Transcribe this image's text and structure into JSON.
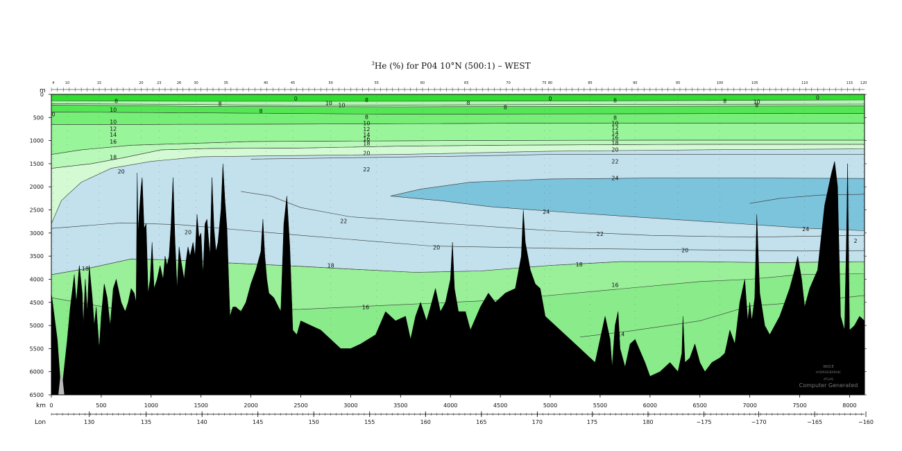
{
  "chart_data": {
    "type": "section_contour",
    "title_superscript": "3",
    "title_main": "He (%) for P04 10°N (500:1) – WEST",
    "x_axis_unit": "km",
    "y_axis_unit": "m",
    "lon_axis_unit": "Lon",
    "xlim": [
      0,
      8150
    ],
    "ylim": [
      6500,
      0
    ],
    "x_ticks": [
      0,
      500,
      1000,
      1500,
      2000,
      2500,
      3000,
      3500,
      4000,
      4500,
      5000,
      5500,
      6000,
      6500,
      7000,
      7500,
      8000
    ],
    "y_ticks": [
      0,
      500,
      1000,
      1500,
      2000,
      2500,
      3000,
      3500,
      4000,
      4500,
      5000,
      5500,
      6000,
      6500
    ],
    "lon_ticks": [
      {
        "km": 380,
        "label": "130"
      },
      {
        "km": 950,
        "label": "135"
      },
      {
        "km": 1510,
        "label": "140"
      },
      {
        "km": 2070,
        "label": "145"
      },
      {
        "km": 2630,
        "label": "150"
      },
      {
        "km": 3190,
        "label": "155"
      },
      {
        "km": 3750,
        "label": "160"
      },
      {
        "km": 4310,
        "label": "165"
      },
      {
        "km": 4870,
        "label": "170"
      },
      {
        "km": 5420,
        "label": "175"
      },
      {
        "km": 5980,
        "label": "180"
      },
      {
        "km": 6540,
        "label": "−175"
      },
      {
        "km": 7090,
        "label": "−170"
      },
      {
        "km": 7650,
        "label": "−165"
      },
      {
        "km": 8200,
        "label": "−160"
      }
    ],
    "stations": [
      {
        "km": 20,
        "label": "4"
      },
      {
        "km": 160,
        "label": "10"
      },
      {
        "km": 480,
        "label": "15"
      },
      {
        "km": 900,
        "label": "20"
      },
      {
        "km": 1080,
        "label": "23"
      },
      {
        "km": 1280,
        "label": "26"
      },
      {
        "km": 1450,
        "label": "30"
      },
      {
        "km": 1750,
        "label": "35"
      },
      {
        "km": 2150,
        "label": "40"
      },
      {
        "km": 2420,
        "label": "45"
      },
      {
        "km": 2800,
        "label": "50"
      },
      {
        "km": 3260,
        "label": "55"
      },
      {
        "km": 3720,
        "label": "60"
      },
      {
        "km": 4160,
        "label": "65"
      },
      {
        "km": 4580,
        "label": "70"
      },
      {
        "km": 4940,
        "label": "75"
      },
      {
        "km": 5000,
        "label": "80"
      },
      {
        "km": 5400,
        "label": "85"
      },
      {
        "km": 5850,
        "label": "90"
      },
      {
        "km": 6280,
        "label": "95"
      },
      {
        "km": 6700,
        "label": "100"
      },
      {
        "km": 7050,
        "label": "105"
      },
      {
        "km": 7550,
        "label": "110"
      },
      {
        "km": 8000,
        "label": "115"
      },
      {
        "km": 8140,
        "label": "120"
      }
    ],
    "contour_levels": [
      0,
      8,
      10,
      12,
      14,
      16,
      18,
      20,
      22,
      24
    ],
    "contour_labels": [
      {
        "text": "0",
        "km": 2450,
        "depth": 90
      },
      {
        "text": "0",
        "km": 5000,
        "depth": 90
      },
      {
        "text": "0",
        "km": 7680,
        "depth": 70
      },
      {
        "text": "0",
        "km": 20,
        "depth": 430
      },
      {
        "text": "8",
        "km": 650,
        "depth": 140
      },
      {
        "text": "8",
        "km": 1690,
        "depth": 200
      },
      {
        "text": "8",
        "km": 2100,
        "depth": 360
      },
      {
        "text": "8",
        "km": 3160,
        "depth": 120
      },
      {
        "text": "8",
        "km": 4180,
        "depth": 180
      },
      {
        "text": "8",
        "km": 4550,
        "depth": 280
      },
      {
        "text": "8",
        "km": 5650,
        "depth": 130
      },
      {
        "text": "8",
        "km": 6750,
        "depth": 140
      },
      {
        "text": "8",
        "km": 7070,
        "depth": 230
      },
      {
        "text": "8",
        "km": 3160,
        "depth": 490
      },
      {
        "text": "8",
        "km": 5650,
        "depth": 500
      },
      {
        "text": "10",
        "km": 620,
        "depth": 330
      },
      {
        "text": "10",
        "km": 2780,
        "depth": 190
      },
      {
        "text": "10",
        "km": 2910,
        "depth": 230
      },
      {
        "text": "10",
        "km": 7070,
        "depth": 160
      },
      {
        "text": "10",
        "km": 620,
        "depth": 590
      },
      {
        "text": "10",
        "km": 3160,
        "depth": 620
      },
      {
        "text": "10",
        "km": 5650,
        "depth": 620
      },
      {
        "text": "12",
        "km": 620,
        "depth": 740
      },
      {
        "text": "12",
        "km": 3160,
        "depth": 750
      },
      {
        "text": "12",
        "km": 5650,
        "depth": 720
      },
      {
        "text": "14",
        "km": 620,
        "depth": 870
      },
      {
        "text": "14",
        "km": 3160,
        "depth": 870
      },
      {
        "text": "14",
        "km": 5650,
        "depth": 830
      },
      {
        "text": "16",
        "km": 620,
        "depth": 1020
      },
      {
        "text": "16",
        "km": 3160,
        "depth": 960
      },
      {
        "text": "16",
        "km": 5650,
        "depth": 930
      },
      {
        "text": "18",
        "km": 620,
        "depth": 1360
      },
      {
        "text": "18",
        "km": 3160,
        "depth": 1060
      },
      {
        "text": "18",
        "km": 5650,
        "depth": 1050
      },
      {
        "text": "20",
        "km": 700,
        "depth": 1670
      },
      {
        "text": "20",
        "km": 3160,
        "depth": 1270
      },
      {
        "text": "20",
        "km": 5650,
        "depth": 1190
      },
      {
        "text": "22",
        "km": 3160,
        "depth": 1620
      },
      {
        "text": "22",
        "km": 5650,
        "depth": 1450
      },
      {
        "text": "24",
        "km": 5650,
        "depth": 1810
      },
      {
        "text": "24",
        "km": 4960,
        "depth": 2540
      },
      {
        "text": "24",
        "km": 7560,
        "depth": 2910
      },
      {
        "text": "22",
        "km": 2930,
        "depth": 2740
      },
      {
        "text": "22",
        "km": 5500,
        "depth": 3020
      },
      {
        "text": "20",
        "km": 1370,
        "depth": 2980
      },
      {
        "text": "20",
        "km": 3860,
        "depth": 3310
      },
      {
        "text": "20",
        "km": 6350,
        "depth": 3370
      },
      {
        "text": "2",
        "km": 8060,
        "depth": 3170
      },
      {
        "text": "18",
        "km": 340,
        "depth": 3770
      },
      {
        "text": "18",
        "km": 2800,
        "depth": 3700
      },
      {
        "text": "18",
        "km": 5290,
        "depth": 3680
      },
      {
        "text": "16",
        "km": 3150,
        "depth": 4600
      },
      {
        "text": "16",
        "km": 5650,
        "depth": 4120
      },
      {
        "text": "14",
        "km": 5710,
        "depth": 5190
      }
    ],
    "colors": {
      "lt8": "#33dd33",
      "8-10": "#55e655",
      "10-12": "#77ee77",
      "12-16": "#99f599",
      "16-18": "#b8f8b8",
      "18-20": "#d4fad4",
      "20-24": "#c2e1ec",
      "ge24": "#7cc3dc",
      "deep16-18": "#b3f5b3",
      "deep14-16": "#99f099",
      "deep-lt14": "#8aeb8a",
      "bathymetry": "#000000"
    }
  },
  "watermark": {
    "line1": "WOCE",
    "line2": "HYDROGRAPHIC",
    "line3": "ATLAS",
    "line4": "Computer Generated"
  }
}
